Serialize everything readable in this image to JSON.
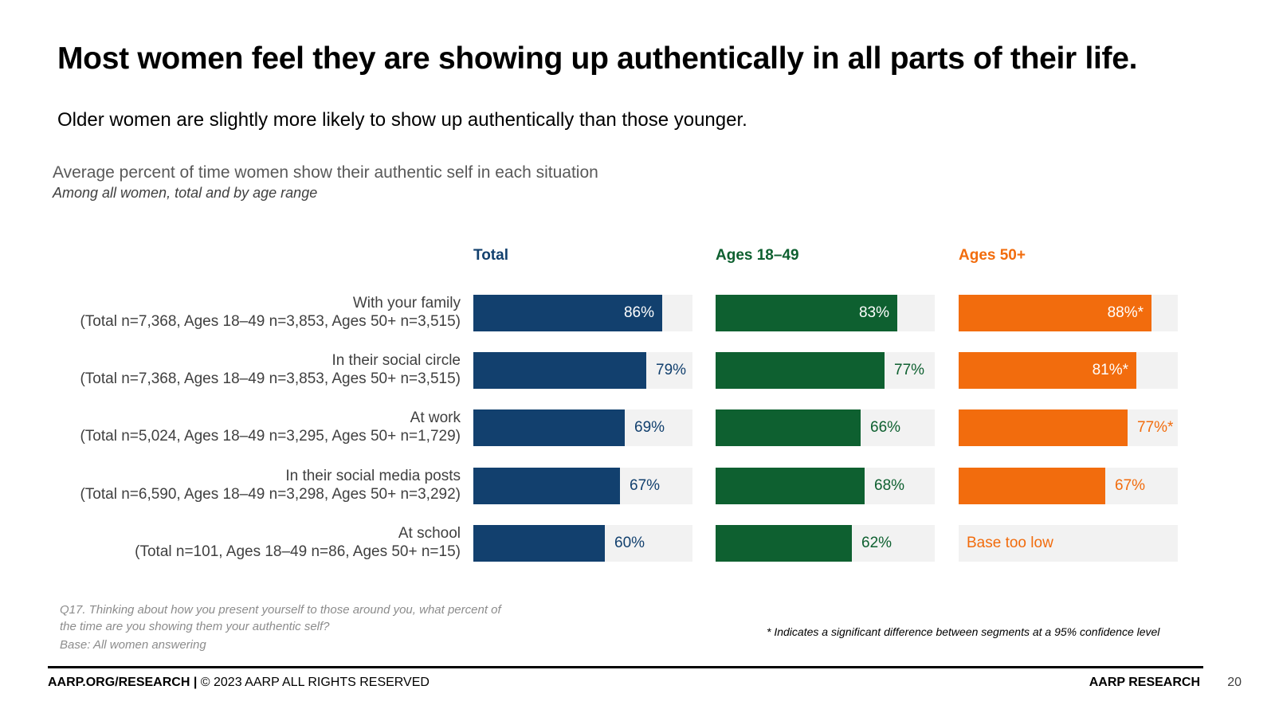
{
  "slide": {
    "title": "Most women feel they are showing up authentically in all parts of their life.",
    "subtitle": "Older women are slightly more likely to show up authentically than those younger."
  },
  "chart_data": {
    "type": "bar",
    "orientation": "horizontal",
    "title": "Average percent of time women show their authentic self in each situation",
    "subtitle": "Among all women, total and by age range",
    "categories": [
      {
        "name": "With your family",
        "base": "(Total n=7,368, Ages 18–49 n=3,853, Ages 50+ n=3,515)"
      },
      {
        "name": "In their social circle",
        "base": "(Total n=7,368, Ages 18–49 n=3,853, Ages 50+ n=3,515)"
      },
      {
        "name": "At work",
        "base": "(Total n=5,024, Ages 18–49 n=3,295, Ages 50+ n=1,729)"
      },
      {
        "name": "In their social media posts",
        "base": "(Total n=6,590, Ages 18–49 n=3,298, Ages 50+ n=3,292)"
      },
      {
        "name": "At school",
        "base": "(Total n=101, Ages 18–49 n=86, Ages 50+ n=15)"
      }
    ],
    "series": [
      {
        "name": "Total",
        "color": "#12406e",
        "values": [
          86,
          79,
          69,
          67,
          60
        ],
        "labels": [
          "86%",
          "79%",
          "69%",
          "67%",
          "60%"
        ]
      },
      {
        "name": "Ages 18–49",
        "color": "#0e6030",
        "values": [
          83,
          77,
          66,
          68,
          62
        ],
        "labels": [
          "83%",
          "77%",
          "66%",
          "68%",
          "62%"
        ]
      },
      {
        "name": "Ages 50+",
        "color": "#f26c0d",
        "values": [
          88,
          81,
          77,
          67,
          null
        ],
        "labels": [
          "88%*",
          "81%*",
          "77%*",
          "67%",
          "Base too low"
        ]
      }
    ],
    "xlim": [
      0,
      100
    ],
    "track_color": "#f2f2f2"
  },
  "notes": {
    "question": "Q17. Thinking about how you present yourself to those around you, what percent of the time are you showing them your authentic self?",
    "base": "Base: All women answering",
    "significance": "* Indicates a significant difference between segments at a 95% confidence level"
  },
  "footer": {
    "site": "AARP.ORG/RESEARCH |",
    "copyright": " © 2023 AARP ALL RIGHTS RESERVED",
    "brand": "AARP RESEARCH",
    "page_number": "20"
  }
}
